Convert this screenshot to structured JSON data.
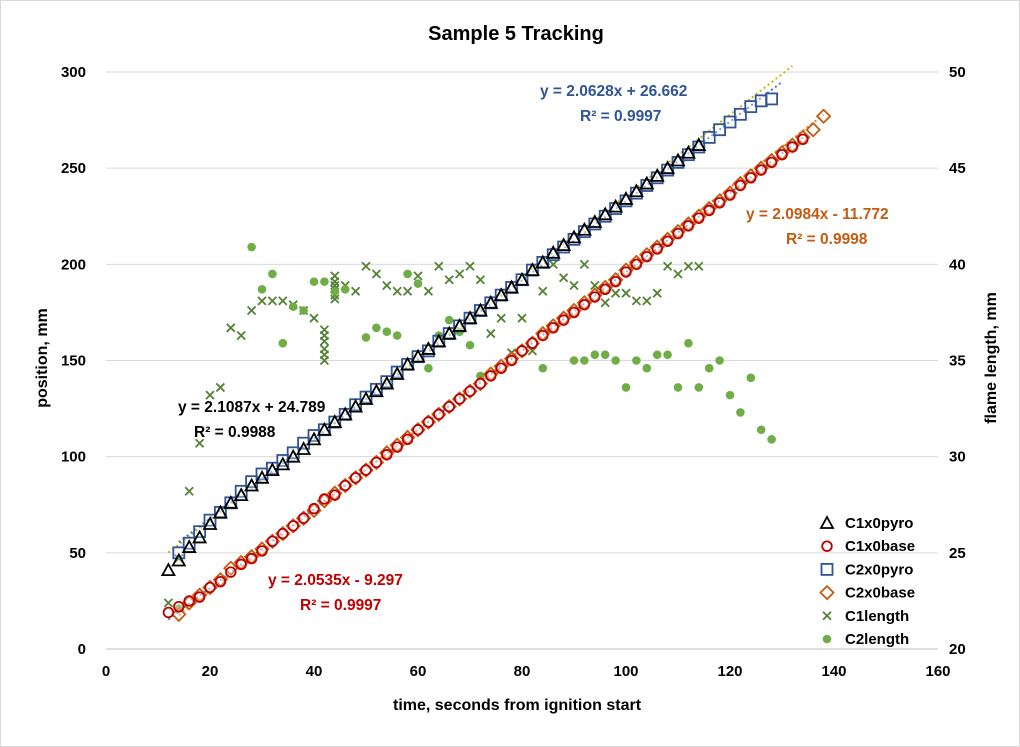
{
  "chart_data": {
    "type": "scatter",
    "title": "Sample 5 Tracking",
    "xlabel": "time, seconds from ignition start",
    "ylabel": "position, mm",
    "y2label": "flame length, mm",
    "xlim": [
      0,
      160
    ],
    "ylim": [
      0,
      300
    ],
    "y2lim": [
      20,
      50
    ],
    "xticks": [
      0,
      20,
      40,
      60,
      80,
      100,
      120,
      140,
      160
    ],
    "yticks": [
      0,
      50,
      100,
      150,
      200,
      250,
      300
    ],
    "y2ticks": [
      20,
      25,
      30,
      35,
      40,
      45,
      50
    ],
    "grid": "horizontal",
    "legend_position": "bottom-right",
    "colors": {
      "C1x0pyro": "#000000",
      "C1x0base": "#c00000",
      "C2x0pyro": "#2f5597",
      "C2x0base": "#c55a11",
      "C1length": "#548235",
      "C2length": "#70ad47"
    },
    "series": [
      {
        "name": "C1x0pyro",
        "marker": "triangle",
        "axis": "primary",
        "x": [
          12,
          14,
          16,
          18,
          20,
          22,
          24,
          26,
          28,
          30,
          32,
          34,
          36,
          38,
          40,
          42,
          44,
          46,
          48,
          50,
          52,
          54,
          56,
          58,
          60,
          62,
          64,
          66,
          68,
          70,
          72,
          74,
          76,
          78,
          80,
          82,
          84,
          86,
          88,
          90,
          92,
          94,
          96,
          98,
          100,
          102,
          104,
          106,
          108,
          110,
          112,
          114
        ],
        "y": [
          41,
          46,
          53,
          58,
          65,
          71,
          76,
          80,
          85,
          89,
          93,
          96,
          100,
          104,
          109,
          114,
          118,
          122,
          126,
          130,
          134,
          138,
          143,
          148,
          152,
          156,
          160,
          164,
          168,
          172,
          176,
          180,
          184,
          188,
          192,
          197,
          201,
          206,
          210,
          214,
          218,
          222,
          226,
          230,
          234,
          238,
          242,
          246,
          250,
          254,
          258,
          262
        ]
      },
      {
        "name": "C1x0base",
        "marker": "circle",
        "axis": "primary",
        "x": [
          12,
          14,
          16,
          18,
          20,
          22,
          24,
          26,
          28,
          30,
          32,
          34,
          36,
          38,
          40,
          42,
          44,
          46,
          48,
          50,
          52,
          54,
          56,
          58,
          60,
          62,
          64,
          66,
          68,
          70,
          72,
          74,
          76,
          78,
          80,
          82,
          84,
          86,
          88,
          90,
          92,
          94,
          96,
          98,
          100,
          102,
          104,
          106,
          108,
          110,
          112,
          114,
          116,
          118,
          120,
          122,
          124,
          126,
          128,
          130,
          132,
          134
        ],
        "y": [
          19,
          22,
          25,
          27,
          32,
          35,
          40,
          44,
          47,
          51,
          56,
          60,
          64,
          68,
          73,
          78,
          80,
          85,
          89,
          93,
          97,
          101,
          105,
          109,
          114,
          118,
          122,
          126,
          130,
          134,
          138,
          142,
          146,
          150,
          155,
          159,
          163,
          167,
          171,
          175,
          179,
          183,
          187,
          191,
          196,
          200,
          204,
          208,
          212,
          216,
          220,
          224,
          228,
          232,
          236,
          241,
          245,
          249,
          253,
          257,
          261,
          265
        ]
      },
      {
        "name": "C2x0pyro",
        "marker": "square",
        "axis": "primary",
        "x": [
          14,
          16,
          18,
          20,
          22,
          24,
          26,
          28,
          30,
          32,
          34,
          36,
          38,
          40,
          42,
          44,
          46,
          48,
          50,
          52,
          54,
          56,
          58,
          60,
          62,
          64,
          66,
          68,
          70,
          72,
          74,
          76,
          78,
          80,
          82,
          84,
          86,
          88,
          90,
          92,
          94,
          96,
          98,
          100,
          102,
          104,
          106,
          108,
          110,
          112,
          114,
          116,
          118,
          120,
          122,
          124,
          126,
          128
        ],
        "y": [
          50,
          55,
          61,
          67,
          71,
          76,
          82,
          87,
          91,
          94,
          98,
          102,
          107,
          111,
          114,
          118,
          122,
          127,
          131,
          135,
          139,
          144,
          148,
          152,
          155,
          160,
          164,
          168,
          172,
          176,
          180,
          184,
          188,
          192,
          197,
          201,
          205,
          209,
          213,
          217,
          221,
          225,
          229,
          233,
          237,
          241,
          245,
          249,
          253,
          257,
          261,
          266,
          270,
          274,
          278,
          282,
          285,
          286
        ]
      },
      {
        "name": "C2x0base",
        "marker": "diamond",
        "axis": "primary",
        "x": [
          14,
          16,
          18,
          20,
          22,
          24,
          26,
          28,
          30,
          32,
          34,
          36,
          38,
          40,
          42,
          44,
          46,
          48,
          50,
          52,
          54,
          56,
          58,
          60,
          62,
          64,
          66,
          68,
          70,
          72,
          74,
          76,
          78,
          80,
          82,
          84,
          86,
          88,
          90,
          92,
          94,
          96,
          98,
          100,
          102,
          104,
          106,
          108,
          110,
          112,
          114,
          116,
          118,
          120,
          122,
          124,
          126,
          128,
          130,
          132,
          134,
          136,
          138
        ],
        "y": [
          18,
          24,
          28,
          32,
          36,
          42,
          45,
          48,
          52,
          56,
          60,
          64,
          68,
          72,
          77,
          81,
          85,
          89,
          93,
          97,
          102,
          106,
          110,
          114,
          118,
          122,
          126,
          130,
          134,
          138,
          143,
          147,
          151,
          155,
          159,
          164,
          168,
          172,
          176,
          180,
          184,
          188,
          192,
          197,
          201,
          205,
          209,
          213,
          217,
          221,
          225,
          229,
          233,
          237,
          242,
          246,
          250,
          254,
          258,
          262,
          266,
          270,
          277
        ]
      },
      {
        "name": "C1length",
        "marker": "x",
        "axis": "secondary",
        "x": [
          12,
          14,
          16,
          18,
          20,
          22,
          24,
          26,
          28,
          30,
          32,
          34,
          36,
          38,
          40,
          42,
          42,
          42,
          42,
          42,
          42,
          44,
          44,
          44,
          44,
          44,
          44,
          46,
          48,
          50,
          52,
          54,
          56,
          58,
          60,
          62,
          64,
          66,
          68,
          70,
          72,
          74,
          76,
          78,
          80,
          82,
          84,
          86,
          88,
          90,
          92,
          94,
          96,
          98,
          100,
          102,
          104,
          106,
          108,
          110,
          112,
          114
        ],
        "y": [
          22.4,
          24.7,
          28.2,
          30.7,
          33.2,
          33.6,
          36.7,
          36.3,
          37.6,
          38.1,
          38.1,
          38.1,
          37.9,
          37.6,
          37.2,
          36.6,
          36.3,
          36.0,
          35.6,
          35.3,
          35.0,
          39.4,
          39.1,
          38.9,
          38.7,
          38.4,
          38.2,
          38.9,
          38.6,
          39.9,
          39.5,
          38.9,
          38.6,
          38.6,
          39.4,
          38.6,
          39.9,
          39.2,
          39.5,
          39.9,
          39.2,
          36.4,
          37.2,
          35.4,
          37.2,
          35.5,
          38.6,
          40.0,
          39.3,
          38.9,
          40.0,
          38.9,
          38.0,
          38.5,
          38.5,
          38.1,
          38.1,
          38.5,
          39.9,
          39.5,
          39.9,
          39.9
        ]
      },
      {
        "name": "C2length",
        "marker": "dot",
        "axis": "secondary",
        "x": [
          14,
          28,
          30,
          32,
          34,
          36,
          38,
          40,
          42,
          44,
          46,
          50,
          52,
          54,
          56,
          58,
          60,
          62,
          64,
          66,
          68,
          70,
          72,
          84,
          90,
          92,
          94,
          96,
          98,
          100,
          102,
          104,
          106,
          108,
          110,
          112,
          114,
          116,
          118,
          120,
          122,
          124,
          126,
          128
        ],
        "y": [
          22.1,
          40.9,
          38.7,
          39.5,
          35.9,
          37.8,
          37.6,
          39.1,
          39.1,
          38.6,
          38.7,
          36.2,
          36.7,
          36.5,
          36.3,
          39.5,
          39.0,
          34.6,
          36.3,
          37.1,
          36.5,
          35.8,
          34.2,
          34.6,
          35.0,
          35.0,
          35.3,
          35.3,
          35.0,
          33.6,
          35.0,
          34.6,
          35.3,
          35.3,
          33.6,
          35.9,
          33.6,
          34.6,
          35.0,
          33.2,
          32.3,
          34.1,
          31.4,
          30.9
        ]
      }
    ],
    "trendlines": [
      {
        "series": "C1x0pyro",
        "color": "#c9b400",
        "slope": 2.1087,
        "intercept": 24.789,
        "x_range": [
          12,
          132
        ],
        "equation": "y = 2.1087x + 24.789",
        "r2": "R² = 0.9988"
      },
      {
        "series": "C2x0pyro",
        "color": "#4472c4",
        "slope": 2.0628,
        "intercept": 26.662,
        "x_range": [
          14,
          130
        ],
        "equation": "y = 2.0628x + 26.662",
        "r2": "R² = 0.9997"
      },
      {
        "series": "C1x0base",
        "color": "#4472c4",
        "slope": 2.0535,
        "intercept": -9.297,
        "x_range": [
          12,
          134
        ],
        "equation": "y = 2.0535x - 9.297",
        "r2": "R² = 0.9997"
      },
      {
        "series": "C2x0base",
        "color": "#ed7d31",
        "slope": 2.0984,
        "intercept": -11.772,
        "x_range": [
          14,
          138
        ],
        "equation": "y = 2.0984x - 11.772",
        "r2": "R² = 0.9998"
      }
    ]
  }
}
